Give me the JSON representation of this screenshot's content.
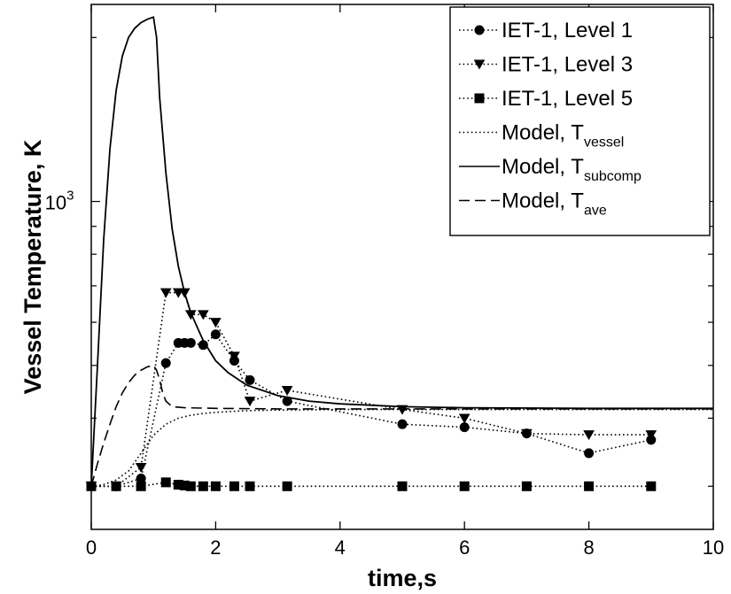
{
  "chart_data": {
    "type": "line",
    "xlabel": "time,s",
    "ylabel": "Vessel Temperature, K",
    "xlim": [
      0,
      10
    ],
    "ylim": [
      250,
      2300
    ],
    "yscale": "log",
    "x_ticks": [
      "0",
      "2",
      "4",
      "6",
      "8",
      "10"
    ],
    "y_tick_label": {
      "base": "10",
      "exponent": "3"
    },
    "grid": false,
    "legend_position": "top-right",
    "series": [
      {
        "name": "IET-1, Level 1",
        "marker": "circle",
        "line": "dotted",
        "x": [
          0,
          0.4,
          0.8,
          1.2,
          1.4,
          1.5,
          1.6,
          1.8,
          2.0,
          2.3,
          2.55,
          3.15,
          5,
          6,
          7,
          8,
          9
        ],
        "y": [
          300,
          300,
          310,
          505,
          550,
          550,
          550,
          545,
          570,
          510,
          470,
          430,
          390,
          385,
          375,
          345,
          365
        ]
      },
      {
        "name": "IET-1, Level 3",
        "marker": "triangle-down",
        "line": "dotted",
        "x": [
          0,
          0.4,
          0.8,
          1.2,
          1.4,
          1.5,
          1.6,
          1.8,
          2.0,
          2.3,
          2.55,
          3.15,
          5,
          6,
          7,
          8,
          9
        ],
        "y": [
          300,
          300,
          325,
          680,
          680,
          680,
          620,
          620,
          600,
          520,
          430,
          450,
          415,
          400,
          375,
          373,
          373
        ]
      },
      {
        "name": "IET-1, Level 5",
        "marker": "square",
        "line": "dotted",
        "x": [
          0,
          0.4,
          0.8,
          1.2,
          1.4,
          1.5,
          1.6,
          1.8,
          2.0,
          2.3,
          2.55,
          3.15,
          5,
          6,
          7,
          8,
          9
        ],
        "y": [
          300,
          300,
          300,
          305,
          302,
          301,
          300,
          300,
          300,
          300,
          300,
          300,
          300,
          300,
          300,
          300,
          300
        ]
      },
      {
        "name": "Model, T",
        "name_sub": "vessel",
        "marker": "none",
        "line": "dotted",
        "x": [
          0,
          0.2,
          0.4,
          0.6,
          0.8,
          1.0,
          1.2,
          1.4,
          1.6,
          1.8,
          2.0,
          2.5,
          3.0,
          4.0,
          5.0,
          6.0,
          8.0,
          10.0
        ],
        "y": [
          300,
          302,
          308,
          320,
          345,
          372,
          390,
          400,
          405,
          408,
          410,
          413,
          414,
          415,
          415,
          415,
          415,
          415
        ]
      },
      {
        "name": "Model, T",
        "name_sub": "subcomp",
        "marker": "none",
        "line": "solid",
        "x": [
          0,
          0.1,
          0.2,
          0.3,
          0.4,
          0.5,
          0.6,
          0.7,
          0.8,
          0.9,
          1.0,
          1.05,
          1.1,
          1.2,
          1.3,
          1.4,
          1.5,
          1.6,
          1.8,
          2.0,
          2.2,
          2.5,
          3.0,
          3.5,
          4.0,
          5.0,
          6.0,
          8.0,
          10.0
        ],
        "y": [
          300,
          500,
          850,
          1250,
          1600,
          1850,
          2000,
          2080,
          2130,
          2160,
          2180,
          2000,
          1550,
          1130,
          890,
          760,
          680,
          625,
          555,
          510,
          485,
          460,
          440,
          430,
          425,
          420,
          418,
          417,
          417
        ]
      },
      {
        "name": "Model, T",
        "name_sub": "ave",
        "marker": "none",
        "line": "dashed",
        "x": [
          0,
          0.1,
          0.2,
          0.3,
          0.4,
          0.5,
          0.6,
          0.7,
          0.8,
          0.9,
          1.0,
          1.05,
          1.1,
          1.15,
          1.2,
          1.3,
          1.5,
          2.0,
          3.0,
          5.0,
          7.0,
          10.0
        ],
        "y": [
          300,
          330,
          360,
          390,
          420,
          445,
          465,
          480,
          490,
          497,
          500,
          490,
          470,
          445,
          430,
          420,
          418,
          417,
          416,
          416,
          416,
          416
        ]
      }
    ]
  }
}
